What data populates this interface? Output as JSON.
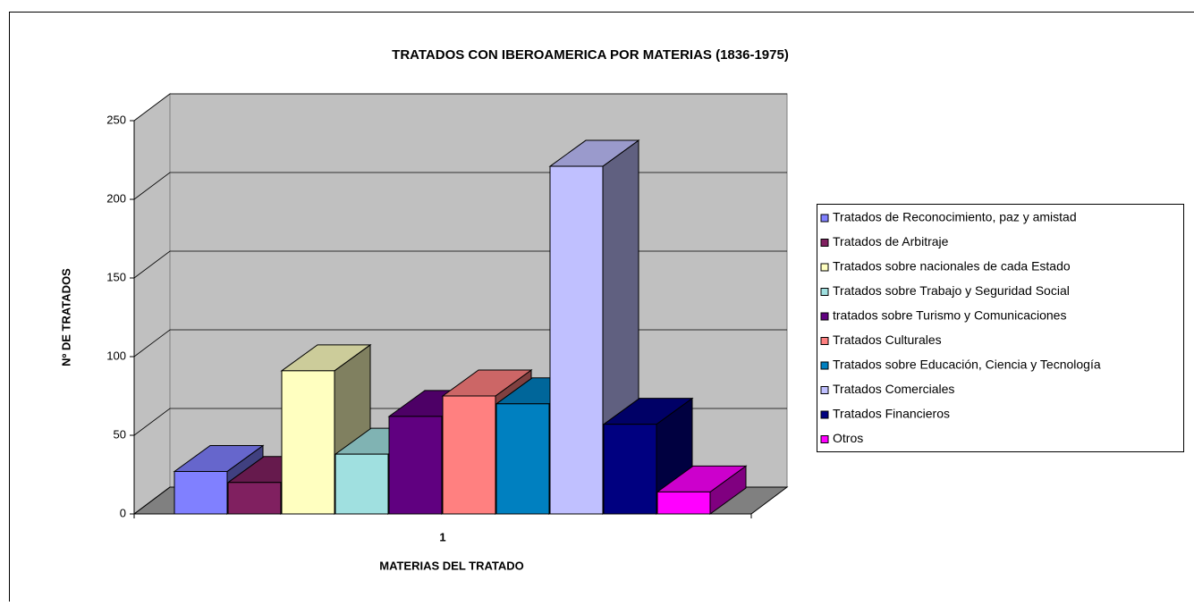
{
  "chart_data": {
    "type": "bar3d",
    "title": "TRATADOS CON IBEROAMERICA POR MATERIAS (1836-1975)",
    "x_label": "MATERIAS DEL TRATADO",
    "y_label": "Nº DE TRATADOS",
    "categories": [
      "1"
    ],
    "series": [
      {
        "name": "Tratados de Reconocimiento, paz y amistad",
        "color": "#8080ff",
        "values": [
          27
        ]
      },
      {
        "name": "Tratados de Arbitraje",
        "color": "#802060",
        "values": [
          20
        ]
      },
      {
        "name": "Tratados sobre nacionales de cada Estado",
        "color": "#ffffc0",
        "values": [
          91
        ]
      },
      {
        "name": "Tratados sobre Trabajo y Seguridad Social",
        "color": "#a0e0e0",
        "values": [
          38
        ]
      },
      {
        "name": "tratados sobre Turismo y Comunicaciones",
        "color": "#600080",
        "values": [
          62
        ]
      },
      {
        "name": "Tratados Culturales",
        "color": "#ff8080",
        "values": [
          75
        ]
      },
      {
        "name": "Tratados sobre Educación, Ciencia y Tecnología",
        "color": "#0080c0",
        "values": [
          70
        ]
      },
      {
        "name": "Tratados Comerciales",
        "color": "#c0c0ff",
        "values": [
          221
        ]
      },
      {
        "name": "Tratados Financieros",
        "color": "#000080",
        "values": [
          57
        ]
      },
      {
        "name": "Otros",
        "color": "#ff00ff",
        "values": [
          14
        ]
      }
    ],
    "ylim": [
      0,
      250
    ],
    "yticks": [
      0,
      50,
      100,
      150,
      200,
      250
    ],
    "grid": true,
    "legend": "right"
  }
}
